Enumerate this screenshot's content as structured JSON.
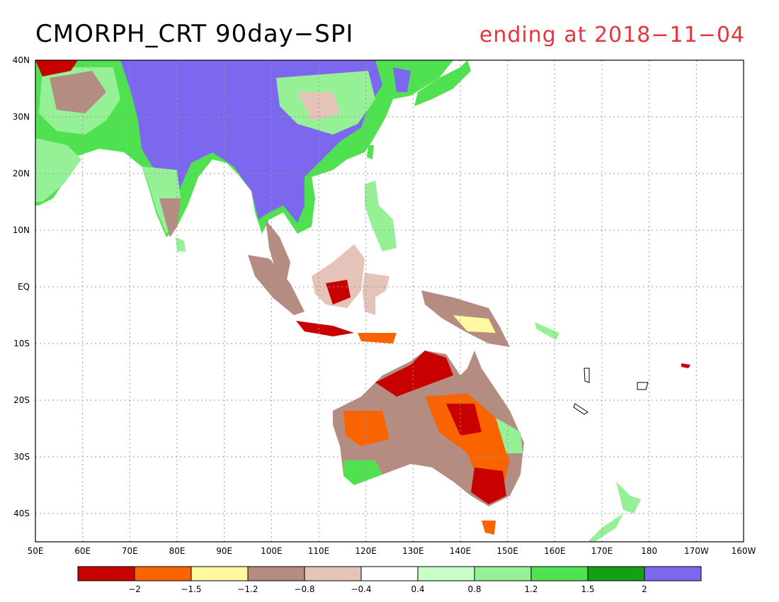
{
  "title": "CMORPH_CRT 90day−SPI",
  "subtitle": "ending at 2018−11−04",
  "subtitle_color": "#e8343c",
  "map": {
    "lon_range": [
      50,
      200
    ],
    "lat_range": [
      -45,
      40
    ],
    "grid_lines": true,
    "lon_ticks": [
      "50E",
      "60E",
      "70E",
      "80E",
      "90E",
      "100E",
      "110E",
      "120E",
      "130E",
      "140E",
      "150E",
      "160E",
      "170E",
      "180",
      "170W",
      "160W"
    ],
    "lat_ticks": [
      "40N",
      "30N",
      "20N",
      "10N",
      "EQ",
      "10S",
      "20S",
      "30S",
      "40S"
    ]
  },
  "colorbar": {
    "colors": [
      "#c80000",
      "#fa6400",
      "#fff8a0",
      "#b48c82",
      "#e6c3b9",
      "#ffffff",
      "#c8ffc8",
      "#96f096",
      "#50e150",
      "#14a014",
      "#7b68ee"
    ],
    "labels": [
      "−2",
      "−1.5",
      "−1.2",
      "−0.8",
      "−0.4",
      "0.4",
      "0.8",
      "1.2",
      "1.5",
      "2"
    ]
  }
}
